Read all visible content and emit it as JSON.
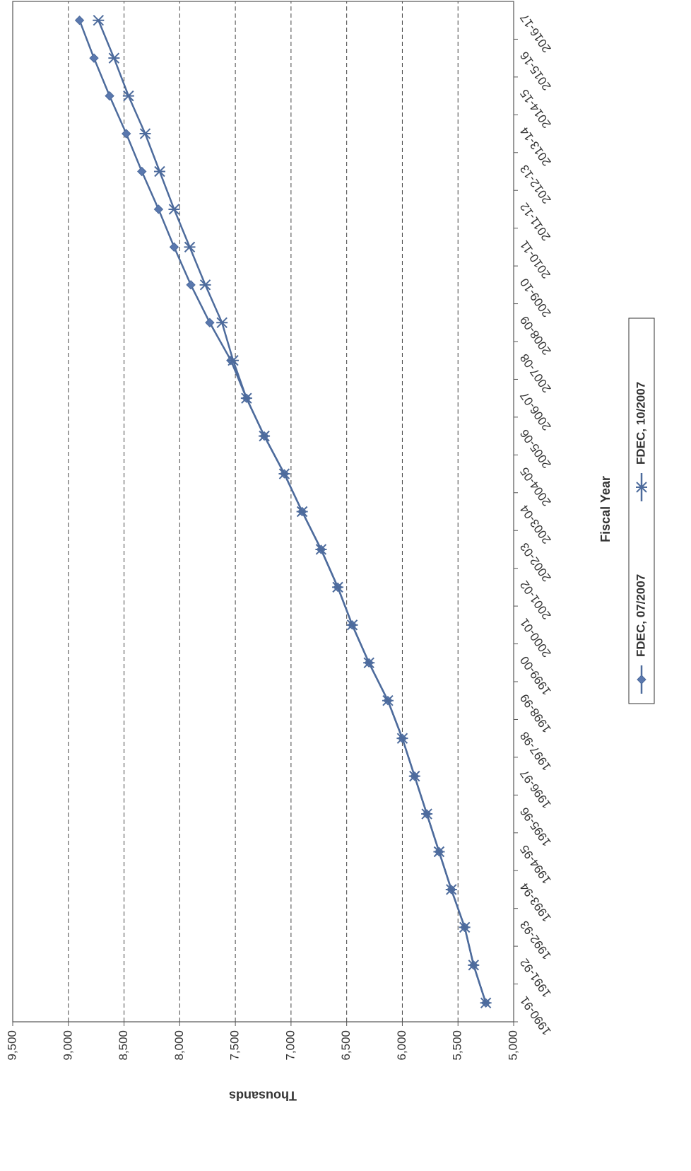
{
  "chart_data": {
    "type": "line",
    "x_label": "Fiscal Year",
    "y_label": "Thousands",
    "categories": [
      "1990-91",
      "1991-92",
      "1992-93",
      "1993-94",
      "1994-95",
      "1995-96",
      "1996-97",
      "1997-98",
      "1998-99",
      "1999-00",
      "2000-01",
      "2001-02",
      "2002-03",
      "2003-04",
      "2004-05",
      "2005-06",
      "2006-07",
      "2007-08",
      "2008-09",
      "2009-10",
      "2010-11",
      "2011-12",
      "2012-13",
      "2013-14",
      "2014-15",
      "2015-16",
      "2016-17"
    ],
    "series": [
      {
        "name": "FDEC, 07/2007",
        "color": "#4d6b9c",
        "marker": "diamond",
        "values": [
          5250,
          5360,
          5440,
          5560,
          5670,
          5780,
          5890,
          6000,
          6130,
          6300,
          6450,
          6580,
          6730,
          6900,
          7060,
          7240,
          7400,
          7540,
          7730,
          7900,
          8050,
          8190,
          8340,
          8480,
          8630,
          8770,
          8900
        ]
      },
      {
        "name": "FDEC, 10/2007",
        "color": "#4d6b9c",
        "marker": "x",
        "values": [
          5250,
          5360,
          5440,
          5560,
          5670,
          5780,
          5890,
          6000,
          6130,
          6300,
          6450,
          6580,
          6730,
          6900,
          7060,
          7240,
          7400,
          7520,
          7620,
          7770,
          7910,
          8050,
          8180,
          8310,
          8460,
          8590,
          8730
        ]
      }
    ],
    "ylim": [
      5000,
      9500
    ],
    "yticks": [
      {
        "value": 5000,
        "label": "5,000"
      },
      {
        "value": 5500,
        "label": "5,500"
      },
      {
        "value": 6000,
        "label": "6,000"
      },
      {
        "value": 6500,
        "label": "6,500"
      },
      {
        "value": 7000,
        "label": "7,000"
      },
      {
        "value": 7500,
        "label": "7,500"
      },
      {
        "value": 8000,
        "label": "8,000"
      },
      {
        "value": 8500,
        "label": "8,500"
      },
      {
        "value": 9000,
        "label": "9,000"
      },
      {
        "value": 9500,
        "label": "9,500"
      }
    ],
    "grid": true,
    "legend": "bottom"
  }
}
